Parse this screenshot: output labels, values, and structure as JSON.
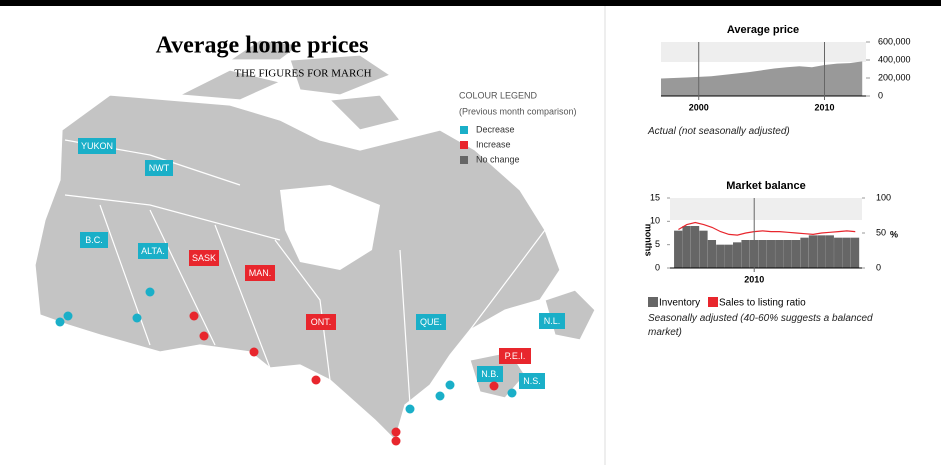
{
  "map": {
    "title": "Average home prices",
    "subtitle": "THE FIGURES FOR MARCH",
    "legend": {
      "title": "COLOUR LEGEND",
      "subtitle": "(Previous month comparison)",
      "items": [
        {
          "name": "Decrease",
          "color": "#1aafc8"
        },
        {
          "name": "Increase",
          "color": "#e8262d"
        },
        {
          "name": "No change",
          "color": "#666666"
        }
      ]
    },
    "regions": [
      {
        "label": "YUKON",
        "color": "#1aafc8"
      },
      {
        "label": "NWT",
        "color": "#1aafc8"
      },
      {
        "label": "B.C.",
        "color": "#1aafc8"
      },
      {
        "label": "ALTA.",
        "color": "#1aafc8"
      },
      {
        "label": "SASK",
        "color": "#e8262d"
      },
      {
        "label": "MAN.",
        "color": "#e8262d"
      },
      {
        "label": "ONT.",
        "color": "#e8262d"
      },
      {
        "label": "QUE.",
        "color": "#1aafc8"
      },
      {
        "label": "N.L.",
        "color": "#1aafc8"
      },
      {
        "label": "P.E.I.",
        "color": "#e8262d"
      },
      {
        "label": "N.B.",
        "color": "#1aafc8"
      },
      {
        "label": "N.S.",
        "color": "#1aafc8"
      }
    ]
  },
  "chart_data": [
    {
      "type": "area",
      "title": "Average price",
      "note": "Actual (not seasonally adjusted)",
      "x": [
        1997,
        1998,
        1999,
        2000,
        2001,
        2002,
        2003,
        2004,
        2005,
        2006,
        2007,
        2008,
        2009,
        2010,
        2011,
        2012,
        2013
      ],
      "values": [
        195000,
        200000,
        205000,
        212000,
        220000,
        235000,
        250000,
        265000,
        285000,
        305000,
        320000,
        330000,
        320000,
        345000,
        360000,
        365000,
        385000
      ],
      "color": "#999999",
      "xlim": [
        1997,
        2013.3
      ],
      "xticks": [
        2000,
        2010
      ],
      "ylim": [
        0,
        600000
      ],
      "yticks": [
        0,
        {
          "value": 200000,
          "label": "200,000"
        },
        {
          "value": 400000,
          "label": "400,000"
        },
        {
          "value": 600000,
          "label": "600,000"
        }
      ]
    },
    {
      "type": "combo",
      "title": "Market balance",
      "ylabel": "months",
      "y2label": "%",
      "note": "Seasonally adjusted (40-60% suggests a balanced market)",
      "x": [
        2007.75,
        2008,
        2008.25,
        2008.5,
        2008.75,
        2009,
        2009.25,
        2009.5,
        2009.75,
        2010,
        2010.25,
        2010.5,
        2010.75,
        2011,
        2011.25,
        2011.5,
        2011.75,
        2012,
        2012.25,
        2012.5,
        2012.75,
        2013
      ],
      "series": [
        {
          "name": "Inventory",
          "color": "#666666",
          "values": [
            8,
            9,
            9,
            8,
            6,
            5,
            5,
            5.5,
            6,
            6,
            6,
            6,
            6,
            6,
            6,
            6.5,
            7,
            7,
            7,
            6.5,
            6.5,
            6.5
          ]
        },
        {
          "name": "Sales to listing ratio",
          "color": "#e8262d",
          "axis": "y2",
          "values": [
            55,
            62,
            65,
            62,
            58,
            52,
            48,
            47,
            50,
            52,
            53,
            52,
            52,
            51,
            50,
            49,
            48,
            50,
            51,
            52,
            53,
            52
          ]
        }
      ],
      "xlim": [
        2007.5,
        2013.2
      ],
      "xticks": [
        2010
      ],
      "ylim": [
        0,
        15
      ],
      "yticks": [
        0,
        5,
        10,
        15
      ],
      "y2lim": [
        0,
        100
      ],
      "y2ticks": [
        0,
        50,
        100
      ]
    }
  ]
}
